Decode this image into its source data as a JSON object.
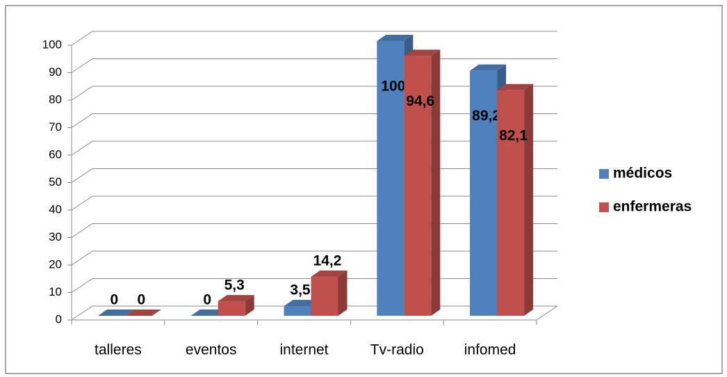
{
  "chart_data": {
    "type": "bar3d",
    "categories": [
      "talleres",
      "eventos",
      "internet",
      "Tv-radio",
      "infomed"
    ],
    "series": [
      {
        "name": "médicos",
        "color": "#4f81bd",
        "values": [
          0,
          0,
          3.5,
          100,
          89.2
        ],
        "value_labels": [
          "0",
          "0",
          "3,5",
          "100",
          "89,2"
        ]
      },
      {
        "name": "enfermeras",
        "color": "#c0504d",
        "values": [
          0,
          5.3,
          14.2,
          94.6,
          82.1
        ],
        "value_labels": [
          "0",
          "5,3",
          "14,2",
          "94,6",
          "82,1"
        ]
      }
    ],
    "ylim": [
      0,
      100
    ],
    "yticks": [
      0,
      10,
      20,
      30,
      40,
      50,
      60,
      70,
      80,
      90,
      100
    ],
    "grid": true,
    "legend": "right"
  }
}
